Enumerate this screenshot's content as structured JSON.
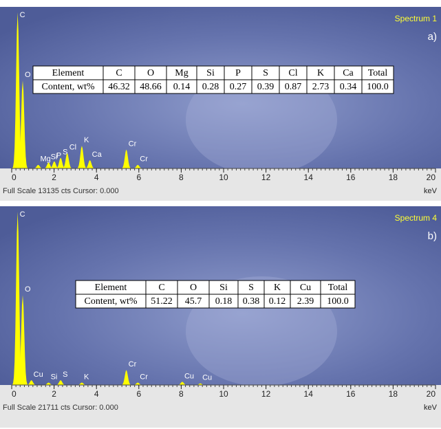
{
  "panels": [
    {
      "spectrum": "Spectrum 1",
      "tag": "a)",
      "xlim": [
        0,
        20
      ],
      "xticks": [
        0,
        2,
        4,
        6,
        8,
        10,
        12,
        14,
        16,
        18,
        20
      ],
      "xlabel": "keV",
      "status_prefix": "Full Scale",
      "full_scale": 13135,
      "status_suffix": "cts Cursor: 0.000",
      "color": "#ffff00",
      "peaks": [
        {
          "label": "C",
          "keV": 0.28,
          "cts": 13135
        },
        {
          "label": "O",
          "keV": 0.52,
          "cts": 7400
        },
        {
          "label": "Mg",
          "keV": 1.25,
          "cts": 300
        },
        {
          "label": "Si",
          "keV": 1.74,
          "cts": 500
        },
        {
          "label": "P",
          "keV": 2.01,
          "cts": 600
        },
        {
          "label": "S",
          "keV": 2.31,
          "cts": 900
        },
        {
          "label": "Cl",
          "keV": 2.62,
          "cts": 1300
        },
        {
          "label": "K",
          "keV": 3.31,
          "cts": 1900
        },
        {
          "label": "Ca",
          "keV": 3.69,
          "cts": 700
        },
        {
          "label": "Cr",
          "keV": 5.41,
          "cts": 1600
        },
        {
          "label": "Cr",
          "keV": 5.95,
          "cts": 300
        }
      ],
      "table": {
        "header": [
          "Element",
          "C",
          "O",
          "Mg",
          "Si",
          "P",
          "S",
          "Cl",
          "K",
          "Ca",
          "Total"
        ],
        "row": [
          "Content, wt%",
          "46.32",
          "48.66",
          "0.14",
          "0.28",
          "0.27",
          "0.39",
          "0.87",
          "2.73",
          "0.34",
          "100.0"
        ]
      }
    },
    {
      "spectrum": "Spectrum 4",
      "tag": "b)",
      "xlim": [
        0,
        20
      ],
      "xticks": [
        0,
        2,
        4,
        6,
        8,
        10,
        12,
        14,
        16,
        18,
        20
      ],
      "xlabel": "keV",
      "status_prefix": "Full Scale",
      "full_scale": 21711,
      "status_suffix": "cts Cursor: 0.000",
      "color": "#ffff00",
      "peaks": [
        {
          "label": "C",
          "keV": 0.28,
          "cts": 21711
        },
        {
          "label": "O",
          "keV": 0.52,
          "cts": 11260
        },
        {
          "label": "Cu",
          "keV": 0.93,
          "cts": 600
        },
        {
          "label": "Si",
          "keV": 1.74,
          "cts": 300
        },
        {
          "label": "S",
          "keV": 2.31,
          "cts": 600
        },
        {
          "label": "K",
          "keV": 3.31,
          "cts": 300
        },
        {
          "label": "Cr",
          "keV": 5.41,
          "cts": 1880
        },
        {
          "label": "Cr",
          "keV": 5.95,
          "cts": 300
        },
        {
          "label": "Cu",
          "keV": 8.05,
          "cts": 400
        },
        {
          "label": "Cu",
          "keV": 8.9,
          "cts": 200
        }
      ],
      "table": {
        "header": [
          "Element",
          "C",
          "O",
          "Si",
          "S",
          "K",
          "Cu",
          "Total"
        ],
        "row": [
          "Content, wt%",
          "51.22",
          "45.7",
          "0.18",
          "0.38",
          "0.12",
          "2.39",
          "100.0"
        ]
      }
    }
  ]
}
